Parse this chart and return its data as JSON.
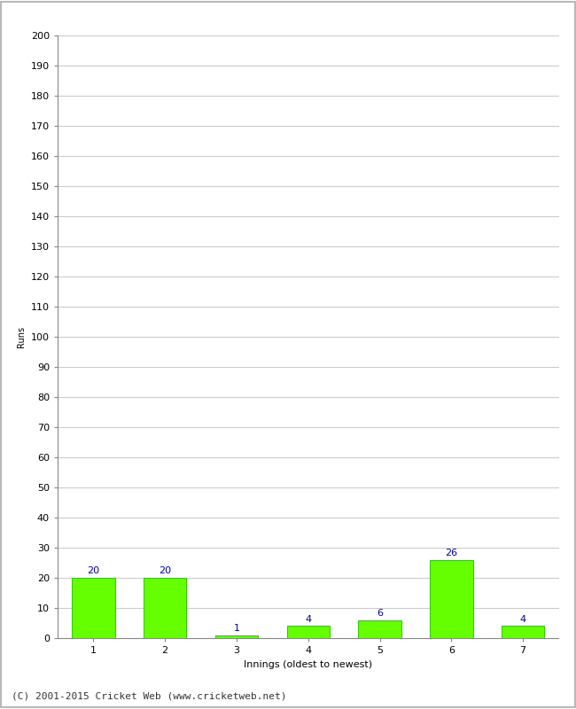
{
  "xlabel": "Innings (oldest to newest)",
  "ylabel": "Runs",
  "categories": [
    "1",
    "2",
    "3",
    "4",
    "5",
    "6",
    "7"
  ],
  "values": [
    20,
    20,
    1,
    4,
    6,
    26,
    4
  ],
  "bar_color": "#66ff00",
  "bar_edge_color": "#33cc00",
  "label_color": "#000099",
  "ylim": [
    0,
    200
  ],
  "yticks": [
    0,
    10,
    20,
    30,
    40,
    50,
    60,
    70,
    80,
    90,
    100,
    110,
    120,
    130,
    140,
    150,
    160,
    170,
    180,
    190,
    200
  ],
  "background_color": "#ffffff",
  "grid_color": "#cccccc",
  "border_color": "#aaaaaa",
  "footer": "(C) 2001-2015 Cricket Web (www.cricketweb.net)",
  "label_fontsize": 8,
  "axis_tick_fontsize": 8,
  "ylabel_fontsize": 7,
  "xlabel_fontsize": 8,
  "footer_fontsize": 8
}
